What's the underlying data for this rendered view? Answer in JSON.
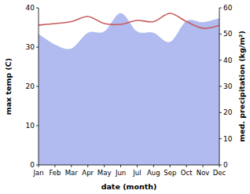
{
  "chart_data": {
    "type": "line",
    "x_label": "date (month)",
    "y_label": "max temp (C)",
    "y2_label": "med. precipitation (kg/m²)",
    "categories": [
      "Jan",
      "Feb",
      "Mar",
      "Apr",
      "May",
      "Jun",
      "Jul",
      "Aug",
      "Sep",
      "Oct",
      "Nov",
      "Dec"
    ],
    "series": [
      {
        "name": "max temp",
        "type": "line",
        "color": "#c75b5b",
        "axis": "y",
        "values": [
          35.6,
          36,
          36.5,
          37.8,
          36,
          35.8,
          36.8,
          36.5,
          38.6,
          36.5,
          34.8,
          35.5
        ]
      },
      {
        "name": "med. precipitation",
        "type": "area",
        "color": "#b1bbf0",
        "axis": "y2",
        "values": [
          50,
          46,
          44.5,
          50.5,
          51,
          58,
          51,
          50.5,
          47,
          55,
          54.5,
          56
        ]
      }
    ],
    "ylim": [
      0,
      40
    ],
    "yticks": [
      0,
      10,
      20,
      30,
      40
    ],
    "y2lim": [
      0,
      60
    ],
    "y2ticks": [
      0,
      10,
      20,
      30,
      40,
      50,
      60
    ],
    "grid": false
  }
}
